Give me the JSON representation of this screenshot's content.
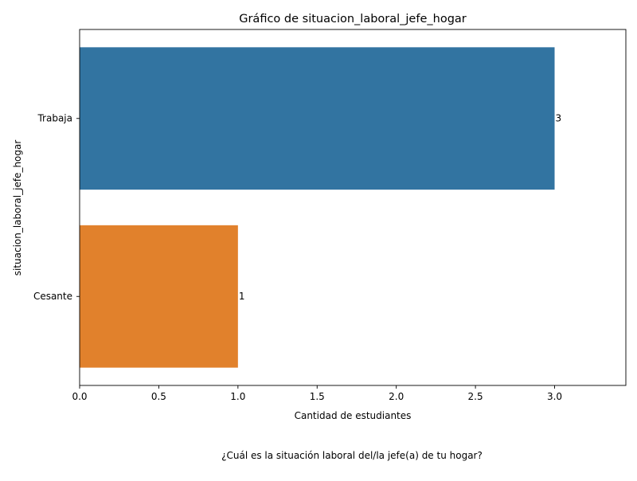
{
  "chart_data": {
    "type": "bar",
    "orientation": "horizontal",
    "title": "Gráfico de situacion_laboral_jefe_hogar",
    "xlabel": "Cantidad de estudiantes",
    "ylabel": "situacion_laboral_jefe_hogar",
    "categories": [
      "Trabaja",
      "Cesante"
    ],
    "values": [
      3,
      1
    ],
    "data_labels": [
      "3",
      "1"
    ],
    "colors": [
      "#3274a1",
      "#e1812c"
    ],
    "xlim": [
      0,
      3.45
    ],
    "xticks": [
      0.0,
      0.5,
      1.0,
      1.5,
      2.0,
      2.5,
      3.0
    ],
    "xtick_labels": [
      "0.0",
      "0.5",
      "1.0",
      "1.5",
      "2.0",
      "2.5",
      "3.0"
    ],
    "grid": false,
    "legend": "none"
  },
  "caption": "¿Cuál es la situación laboral del/la jefe(a) de tu hogar?"
}
